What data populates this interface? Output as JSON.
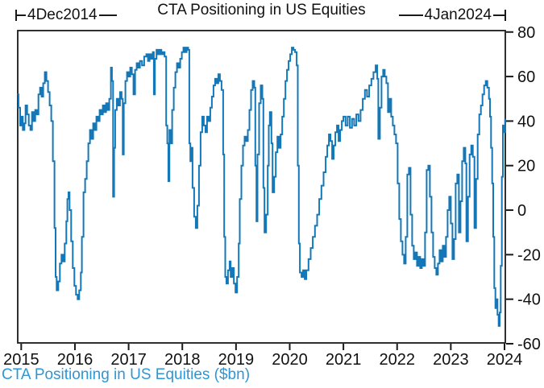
{
  "chart": {
    "title": "CTA Positioning in US Equities",
    "footnote": "CTA Positioning in US Equities ($bn)",
    "range_start_label": "4Dec2014",
    "range_end_label": "4Jan2024"
  },
  "colors": {
    "line": "#1478b8",
    "footnote_text": "#2e96d4",
    "axis": "#1a1a1a",
    "tick_text": "#111111"
  },
  "chart_data": {
    "type": "line",
    "title": "CTA Positioning in US Equities",
    "series_name": "CTA Positioning in US Equities ($bn)",
    "xlabel": "",
    "ylabel": "",
    "x_ticks": [
      2015,
      2016,
      2017,
      2018,
      2019,
      2020,
      2021,
      2022,
      2023,
      2024
    ],
    "y_ticks": [
      80,
      60,
      40,
      20,
      0,
      -20,
      -40,
      -60
    ],
    "xlim": [
      2014.92,
      2024.03
    ],
    "ylim": [
      -60,
      81
    ],
    "y_axis_side": "right",
    "grid": false,
    "step_interpolation": true,
    "start_date": "4Dec2014",
    "end_date": "4Jan2024",
    "points": [
      [
        2014.93,
        52
      ],
      [
        2014.95,
        46
      ],
      [
        2014.98,
        38
      ],
      [
        2015.0,
        42
      ],
      [
        2015.03,
        36
      ],
      [
        2015.06,
        39
      ],
      [
        2015.08,
        47
      ],
      [
        2015.11,
        43
      ],
      [
        2015.14,
        38
      ],
      [
        2015.17,
        36
      ],
      [
        2015.2,
        44
      ],
      [
        2015.23,
        40
      ],
      [
        2015.26,
        45
      ],
      [
        2015.29,
        43
      ],
      [
        2015.32,
        52
      ],
      [
        2015.35,
        55
      ],
      [
        2015.38,
        51
      ],
      [
        2015.41,
        57
      ],
      [
        2015.44,
        62
      ],
      [
        2015.47,
        58
      ],
      [
        2015.5,
        53
      ],
      [
        2015.53,
        47
      ],
      [
        2015.56,
        40
      ],
      [
        2015.59,
        22
      ],
      [
        2015.62,
        -8
      ],
      [
        2015.64,
        -30
      ],
      [
        2015.66,
        -36
      ],
      [
        2015.69,
        -32
      ],
      [
        2015.72,
        -24
      ],
      [
        2015.75,
        -20
      ],
      [
        2015.78,
        -23
      ],
      [
        2015.81,
        -15
      ],
      [
        2015.84,
        -5
      ],
      [
        2015.86,
        5
      ],
      [
        2015.88,
        8
      ],
      [
        2015.9,
        0
      ],
      [
        2015.93,
        -14
      ],
      [
        2015.96,
        -26
      ],
      [
        2015.99,
        -34
      ],
      [
        2016.02,
        -38
      ],
      [
        2016.05,
        -40
      ],
      [
        2016.08,
        -36
      ],
      [
        2016.11,
        -28
      ],
      [
        2016.13,
        -12
      ],
      [
        2016.16,
        8
      ],
      [
        2016.19,
        14
      ],
      [
        2016.22,
        22
      ],
      [
        2016.25,
        30
      ],
      [
        2016.28,
        36
      ],
      [
        2016.31,
        32
      ],
      [
        2016.34,
        39
      ],
      [
        2016.37,
        36
      ],
      [
        2016.4,
        42
      ],
      [
        2016.43,
        40
      ],
      [
        2016.46,
        45
      ],
      [
        2016.49,
        43
      ],
      [
        2016.52,
        47
      ],
      [
        2016.55,
        44
      ],
      [
        2016.58,
        48
      ],
      [
        2016.61,
        45
      ],
      [
        2016.64,
        50
      ],
      [
        2016.67,
        64
      ],
      [
        2016.69,
        58
      ],
      [
        2016.71,
        6
      ],
      [
        2016.73,
        28
      ],
      [
        2016.75,
        45
      ],
      [
        2016.78,
        50
      ],
      [
        2016.81,
        47
      ],
      [
        2016.84,
        53
      ],
      [
        2016.87,
        50
      ],
      [
        2016.89,
        25
      ],
      [
        2016.91,
        48
      ],
      [
        2016.94,
        58
      ],
      [
        2016.97,
        62
      ],
      [
        2017.0,
        60
      ],
      [
        2017.03,
        64
      ],
      [
        2017.06,
        61
      ],
      [
        2017.09,
        52
      ],
      [
        2017.12,
        63
      ],
      [
        2017.15,
        66
      ],
      [
        2017.18,
        64
      ],
      [
        2017.21,
        67
      ],
      [
        2017.25,
        65
      ],
      [
        2017.29,
        69
      ],
      [
        2017.33,
        70
      ],
      [
        2017.36,
        67
      ],
      [
        2017.39,
        70
      ],
      [
        2017.42,
        68
      ],
      [
        2017.45,
        71
      ],
      [
        2017.47,
        52
      ],
      [
        2017.49,
        68
      ],
      [
        2017.52,
        72
      ],
      [
        2017.55,
        70
      ],
      [
        2017.58,
        72
      ],
      [
        2017.61,
        70
      ],
      [
        2017.64,
        71
      ],
      [
        2017.67,
        69
      ],
      [
        2017.7,
        38
      ],
      [
        2017.72,
        30
      ],
      [
        2017.74,
        13
      ],
      [
        2017.76,
        36
      ],
      [
        2017.78,
        30
      ],
      [
        2017.81,
        45
      ],
      [
        2017.84,
        55
      ],
      [
        2017.87,
        62
      ],
      [
        2017.9,
        66
      ],
      [
        2017.93,
        64
      ],
      [
        2017.96,
        68
      ],
      [
        2017.99,
        71
      ],
      [
        2018.02,
        73
      ],
      [
        2018.05,
        71
      ],
      [
        2018.08,
        73
      ],
      [
        2018.11,
        72
      ],
      [
        2018.13,
        30
      ],
      [
        2018.15,
        22
      ],
      [
        2018.17,
        28
      ],
      [
        2018.19,
        10
      ],
      [
        2018.22,
        -3
      ],
      [
        2018.25,
        -8
      ],
      [
        2018.28,
        2
      ],
      [
        2018.31,
        20
      ],
      [
        2018.34,
        35
      ],
      [
        2018.37,
        42
      ],
      [
        2018.4,
        38
      ],
      [
        2018.43,
        35
      ],
      [
        2018.46,
        42
      ],
      [
        2018.49,
        40
      ],
      [
        2018.52,
        46
      ],
      [
        2018.55,
        51
      ],
      [
        2018.58,
        56
      ],
      [
        2018.61,
        59
      ],
      [
        2018.64,
        57
      ],
      [
        2018.67,
        61
      ],
      [
        2018.7,
        58
      ],
      [
        2018.73,
        54
      ],
      [
        2018.76,
        25
      ],
      [
        2018.78,
        -12
      ],
      [
        2018.8,
        -30
      ],
      [
        2018.82,
        -33
      ],
      [
        2018.85,
        -27
      ],
      [
        2018.88,
        -23
      ],
      [
        2018.9,
        -30
      ],
      [
        2018.93,
        -26
      ],
      [
        2018.96,
        -33
      ],
      [
        2018.99,
        -37
      ],
      [
        2019.02,
        -30
      ],
      [
        2019.05,
        -15
      ],
      [
        2019.07,
        5
      ],
      [
        2019.1,
        20
      ],
      [
        2019.13,
        29
      ],
      [
        2019.16,
        33
      ],
      [
        2019.19,
        31
      ],
      [
        2019.22,
        36
      ],
      [
        2019.25,
        45
      ],
      [
        2019.28,
        54
      ],
      [
        2019.31,
        58
      ],
      [
        2019.34,
        55
      ],
      [
        2019.36,
        20
      ],
      [
        2019.38,
        -5
      ],
      [
        2019.4,
        25
      ],
      [
        2019.43,
        48
      ],
      [
        2019.46,
        56
      ],
      [
        2019.49,
        50
      ],
      [
        2019.51,
        10
      ],
      [
        2019.53,
        -10
      ],
      [
        2019.56,
        -2
      ],
      [
        2019.59,
        20
      ],
      [
        2019.61,
        38
      ],
      [
        2019.63,
        44
      ],
      [
        2019.66,
        30
      ],
      [
        2019.68,
        8
      ],
      [
        2019.71,
        15
      ],
      [
        2019.74,
        26
      ],
      [
        2019.77,
        33
      ],
      [
        2019.8,
        28
      ],
      [
        2019.83,
        34
      ],
      [
        2019.86,
        42
      ],
      [
        2019.89,
        50
      ],
      [
        2019.92,
        58
      ],
      [
        2019.95,
        63
      ],
      [
        2019.98,
        67
      ],
      [
        2020.01,
        70
      ],
      [
        2020.04,
        73
      ],
      [
        2020.07,
        72
      ],
      [
        2020.1,
        71
      ],
      [
        2020.13,
        65
      ],
      [
        2020.15,
        20
      ],
      [
        2020.17,
        -15
      ],
      [
        2020.19,
        -28
      ],
      [
        2020.22,
        -30
      ],
      [
        2020.25,
        -27
      ],
      [
        2020.28,
        -31
      ],
      [
        2020.31,
        -27
      ],
      [
        2020.35,
        -22
      ],
      [
        2020.39,
        -17
      ],
      [
        2020.43,
        -12
      ],
      [
        2020.47,
        -7
      ],
      [
        2020.51,
        -2
      ],
      [
        2020.55,
        5
      ],
      [
        2020.59,
        11
      ],
      [
        2020.63,
        17
      ],
      [
        2020.67,
        24
      ],
      [
        2020.7,
        29
      ],
      [
        2020.73,
        34
      ],
      [
        2020.76,
        31
      ],
      [
        2020.79,
        23
      ],
      [
        2020.82,
        29
      ],
      [
        2020.85,
        35
      ],
      [
        2020.88,
        38
      ],
      [
        2020.91,
        31
      ],
      [
        2020.94,
        36
      ],
      [
        2020.97,
        40
      ],
      [
        2021.0,
        42
      ],
      [
        2021.04,
        38
      ],
      [
        2021.08,
        42
      ],
      [
        2021.12,
        37
      ],
      [
        2021.16,
        41
      ],
      [
        2021.2,
        38
      ],
      [
        2021.24,
        43
      ],
      [
        2021.28,
        40
      ],
      [
        2021.32,
        45
      ],
      [
        2021.36,
        50
      ],
      [
        2021.4,
        54
      ],
      [
        2021.44,
        51
      ],
      [
        2021.48,
        56
      ],
      [
        2021.52,
        59
      ],
      [
        2021.56,
        62
      ],
      [
        2021.6,
        65
      ],
      [
        2021.63,
        59
      ],
      [
        2021.65,
        32
      ],
      [
        2021.68,
        46
      ],
      [
        2021.71,
        60
      ],
      [
        2021.74,
        63
      ],
      [
        2021.77,
        60
      ],
      [
        2021.8,
        57
      ],
      [
        2021.83,
        44
      ],
      [
        2021.86,
        50
      ],
      [
        2021.89,
        42
      ],
      [
        2021.92,
        38
      ],
      [
        2021.95,
        34
      ],
      [
        2021.98,
        30
      ],
      [
        2022.01,
        12
      ],
      [
        2022.04,
        -4
      ],
      [
        2022.07,
        -14
      ],
      [
        2022.1,
        -20
      ],
      [
        2022.13,
        -24
      ],
      [
        2022.16,
        -12
      ],
      [
        2022.19,
        16
      ],
      [
        2022.22,
        19
      ],
      [
        2022.25,
        -2
      ],
      [
        2022.28,
        -16
      ],
      [
        2022.31,
        -22
      ],
      [
        2022.34,
        -19
      ],
      [
        2022.37,
        -25
      ],
      [
        2022.4,
        -21
      ],
      [
        2022.43,
        -26
      ],
      [
        2022.46,
        -22
      ],
      [
        2022.49,
        -25
      ],
      [
        2022.52,
        -10
      ],
      [
        2022.55,
        18
      ],
      [
        2022.58,
        20
      ],
      [
        2022.61,
        6
      ],
      [
        2022.64,
        -10
      ],
      [
        2022.67,
        -21
      ],
      [
        2022.7,
        -26
      ],
      [
        2022.73,
        -29
      ],
      [
        2022.76,
        -24
      ],
      [
        2022.79,
        -18
      ],
      [
        2022.82,
        -23
      ],
      [
        2022.85,
        -16
      ],
      [
        2022.88,
        -21
      ],
      [
        2022.91,
        -12
      ],
      [
        2022.94,
        0
      ],
      [
        2022.97,
        6
      ],
      [
        2023.0,
        -6
      ],
      [
        2023.03,
        -22
      ],
      [
        2023.06,
        -13
      ],
      [
        2023.09,
        12
      ],
      [
        2023.12,
        16
      ],
      [
        2023.15,
        -10
      ],
      [
        2023.18,
        4
      ],
      [
        2023.21,
        22
      ],
      [
        2023.24,
        28
      ],
      [
        2023.27,
        21
      ],
      [
        2023.29,
        -14
      ],
      [
        2023.32,
        6
      ],
      [
        2023.35,
        25
      ],
      [
        2023.38,
        29
      ],
      [
        2023.41,
        24
      ],
      [
        2023.44,
        -8
      ],
      [
        2023.47,
        14
      ],
      [
        2023.5,
        34
      ],
      [
        2023.53,
        43
      ],
      [
        2023.56,
        47
      ],
      [
        2023.59,
        52
      ],
      [
        2023.62,
        56
      ],
      [
        2023.65,
        58
      ],
      [
        2023.68,
        55
      ],
      [
        2023.71,
        50
      ],
      [
        2023.73,
        42
      ],
      [
        2023.75,
        28
      ],
      [
        2023.77,
        12
      ],
      [
        2023.79,
        -12
      ],
      [
        2023.81,
        -35
      ],
      [
        2023.83,
        -44
      ],
      [
        2023.85,
        -40
      ],
      [
        2023.87,
        -47
      ],
      [
        2023.89,
        -52
      ],
      [
        2023.91,
        -46
      ],
      [
        2023.93,
        -25
      ],
      [
        2023.95,
        15
      ],
      [
        2023.97,
        38
      ],
      [
        2023.99,
        35
      ],
      [
        2024.01,
        41
      ]
    ]
  }
}
